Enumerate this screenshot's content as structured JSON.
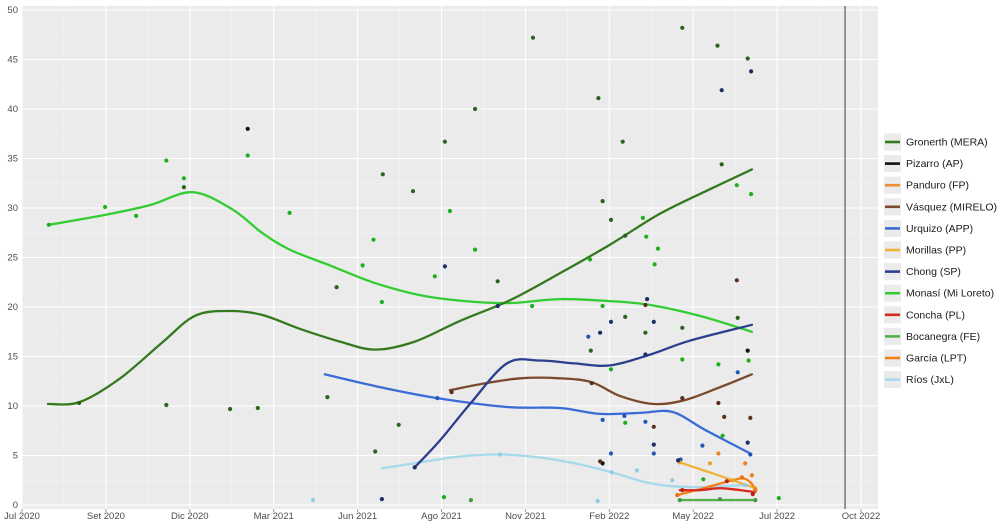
{
  "chart_data": {
    "type": "scatter-line",
    "title": "",
    "xlabel": "",
    "ylabel": "",
    "y_axis": {
      "min": 0,
      "max": 50,
      "step": 5,
      "tick_labels": [
        "0",
        "5",
        "10",
        "15",
        "20",
        "25",
        "30",
        "35",
        "40",
        "45",
        "50"
      ]
    },
    "x_axis": {
      "tick_labels": [
        "Jul 2020",
        "Set 2020",
        "Dic 2020",
        "Mar 2021",
        "Jun 2021",
        "Ago 2021",
        "Nov 2021",
        "Feb 2022",
        "May 2022",
        "Jul 2022",
        "Oct 2022"
      ],
      "note": "ticks evenly spaced; x values below are in tick-index units (0 = Jul 2020, 10 = Oct 2022)"
    },
    "grid": true,
    "panel_background": "#ebebeb",
    "gridline_color": "#ffffff",
    "election_marker_x": 9.81,
    "election_marker_color": "#5a5a5a",
    "legend_position": "right",
    "series": [
      {
        "id": "gronerth",
        "label": "Gronerth (MERA)",
        "color": "#35791f",
        "dot_color": "#2a641a",
        "line": [
          [
            0.31,
            10.2
          ],
          [
            0.69,
            10.4
          ],
          [
            1.17,
            12.8
          ],
          [
            1.67,
            16.4
          ],
          [
            2.06,
            19.1
          ],
          [
            2.47,
            19.6
          ],
          [
            2.86,
            19.2
          ],
          [
            3.31,
            17.8
          ],
          [
            3.79,
            16.5
          ],
          [
            4.21,
            15.7
          ],
          [
            4.68,
            16.5
          ],
          [
            5.22,
            18.6
          ],
          [
            5.82,
            20.7
          ],
          [
            6.41,
            23.4
          ],
          [
            7.01,
            26.3
          ],
          [
            7.6,
            29.4
          ],
          [
            8.2,
            31.9
          ],
          [
            8.7,
            33.9
          ]
        ],
        "points": [
          [
            0.68,
            10.3
          ],
          [
            1.72,
            10.1
          ],
          [
            2.48,
            9.7
          ],
          [
            2.81,
            9.8
          ],
          [
            3.64,
            10.9
          ],
          [
            4.21,
            5.4
          ],
          [
            4.49,
            8.1
          ],
          [
            1.93,
            32.1
          ],
          [
            3.75,
            22.0
          ],
          [
            4.3,
            33.4
          ],
          [
            4.66,
            31.7
          ],
          [
            5.04,
            36.7
          ],
          [
            5.4,
            40.0
          ],
          [
            5.67,
            22.6
          ],
          [
            6.09,
            47.2
          ],
          [
            6.87,
            41.1
          ],
          [
            6.92,
            30.7
          ],
          [
            7.02,
            28.8
          ],
          [
            7.16,
            36.7
          ],
          [
            7.19,
            27.2
          ],
          [
            7.19,
            19.0
          ],
          [
            6.78,
            15.6
          ],
          [
            7.43,
            17.4
          ],
          [
            7.87,
            48.2
          ],
          [
            7.87,
            17.9
          ],
          [
            8.29,
            46.4
          ],
          [
            8.34,
            34.4
          ],
          [
            8.53,
            18.9
          ],
          [
            8.65,
            45.1
          ]
        ]
      },
      {
        "id": "pizarro",
        "label": "Pizarro (AP)",
        "color": "#111111",
        "dot_color": "#111111",
        "line": [],
        "points": [
          [
            2.69,
            38.0
          ],
          [
            6.92,
            4.2
          ],
          [
            8.65,
            15.6
          ]
        ]
      },
      {
        "id": "panduro",
        "label": "Panduro (FP)",
        "color": "#ef8e2e",
        "dot_color": "#e8821e",
        "line": [],
        "points": [
          [
            8.3,
            5.2
          ],
          [
            8.62,
            4.2
          ],
          [
            8.7,
            3.0
          ]
        ]
      },
      {
        "id": "vasquez",
        "label": "Vásquez (MIRELO)",
        "color": "#7b4a2d",
        "dot_color": "#5c2f1b",
        "line": [
          [
            5.1,
            11.6
          ],
          [
            5.46,
            12.2
          ],
          [
            5.94,
            12.8
          ],
          [
            6.41,
            12.8
          ],
          [
            6.79,
            12.4
          ],
          [
            7.13,
            11.0
          ],
          [
            7.53,
            10.2
          ],
          [
            7.9,
            10.6
          ],
          [
            8.32,
            11.9
          ],
          [
            8.7,
            13.2
          ]
        ],
        "points": [
          [
            5.12,
            11.4
          ],
          [
            6.79,
            12.3
          ],
          [
            6.89,
            4.4
          ],
          [
            7.43,
            20.2
          ],
          [
            7.53,
            7.9
          ],
          [
            7.87,
            10.8
          ],
          [
            8.3,
            10.3
          ],
          [
            8.37,
            8.9
          ],
          [
            8.52,
            22.7
          ],
          [
            8.68,
            8.8
          ]
        ]
      },
      {
        "id": "urquizo",
        "label": "Urquizo (APP)",
        "color": "#3a6bd6",
        "dot_color": "#2456b8",
        "line": [
          [
            3.61,
            13.2
          ],
          [
            4.27,
            11.9
          ],
          [
            4.95,
            10.8
          ],
          [
            5.78,
            9.9
          ],
          [
            6.41,
            9.8
          ],
          [
            6.89,
            9.2
          ],
          [
            7.37,
            9.3
          ],
          [
            7.75,
            9.4
          ],
          [
            8.14,
            7.6
          ],
          [
            8.68,
            5.2
          ]
        ],
        "points": [
          [
            4.95,
            10.8
          ],
          [
            6.75,
            17.0
          ],
          [
            6.92,
            8.6
          ],
          [
            7.02,
            5.2
          ],
          [
            7.18,
            9.0
          ],
          [
            7.43,
            8.4
          ],
          [
            7.53,
            5.2
          ],
          [
            7.85,
            4.6
          ],
          [
            8.11,
            6.0
          ],
          [
            8.53,
            13.4
          ],
          [
            8.68,
            5.1
          ]
        ]
      },
      {
        "id": "morillas",
        "label": "Morillas (PP)",
        "color": "#eeb33c",
        "dot_color": "#e2a52e",
        "line": [
          [
            7.84,
            4.3
          ],
          [
            8.3,
            3.0
          ],
          [
            8.74,
            1.7
          ]
        ],
        "points": [
          [
            7.84,
            4.3
          ],
          [
            8.2,
            4.2
          ],
          [
            8.48,
            2.5
          ],
          [
            8.74,
            1.7
          ]
        ]
      },
      {
        "id": "chong",
        "label": "Chong (SP)",
        "color": "#2b3f8c",
        "dot_color": "#1f2d66",
        "line": [
          [
            4.68,
            3.8
          ],
          [
            4.98,
            6.5
          ],
          [
            5.34,
            10.2
          ],
          [
            5.78,
            14.3
          ],
          [
            6.17,
            14.6
          ],
          [
            6.59,
            14.3
          ],
          [
            7.01,
            14.1
          ],
          [
            7.49,
            15.2
          ],
          [
            7.96,
            16.6
          ],
          [
            8.7,
            18.2
          ]
        ],
        "points": [
          [
            4.29,
            0.6
          ],
          [
            4.68,
            3.8
          ],
          [
            5.04,
            24.1
          ],
          [
            5.67,
            20.1
          ],
          [
            6.89,
            17.4
          ],
          [
            7.02,
            18.5
          ],
          [
            7.43,
            15.2
          ],
          [
            7.45,
            20.8
          ],
          [
            7.53,
            18.5
          ],
          [
            7.53,
            6.1
          ],
          [
            7.82,
            4.5
          ],
          [
            8.34,
            41.9
          ],
          [
            8.65,
            6.3
          ],
          [
            8.69,
            43.8
          ]
        ]
      },
      {
        "id": "monasi",
        "label": "Monasí (Mi Loreto)",
        "color": "#33cc33",
        "dot_color": "#1fae1f",
        "line": [
          [
            0.32,
            28.3
          ],
          [
            0.99,
            29.3
          ],
          [
            1.53,
            30.3
          ],
          [
            2.03,
            31.6
          ],
          [
            2.5,
            29.9
          ],
          [
            2.86,
            27.5
          ],
          [
            3.19,
            25.8
          ],
          [
            3.67,
            24.2
          ],
          [
            4.18,
            22.5
          ],
          [
            4.74,
            21.2
          ],
          [
            5.28,
            20.6
          ],
          [
            5.82,
            20.4
          ],
          [
            6.41,
            20.8
          ],
          [
            7.01,
            20.6
          ],
          [
            7.49,
            20.2
          ],
          [
            8.08,
            19.1
          ],
          [
            8.7,
            17.5
          ]
        ],
        "points": [
          [
            0.32,
            28.3
          ],
          [
            0.99,
            30.1
          ],
          [
            1.36,
            29.2
          ],
          [
            1.72,
            34.8
          ],
          [
            1.93,
            33.0
          ],
          [
            2.69,
            35.3
          ],
          [
            3.19,
            29.5
          ],
          [
            4.06,
            24.2
          ],
          [
            4.19,
            26.8
          ],
          [
            4.29,
            20.5
          ],
          [
            4.92,
            23.1
          ],
          [
            5.1,
            29.7
          ],
          [
            5.4,
            25.8
          ],
          [
            6.08,
            20.1
          ],
          [
            6.77,
            24.8
          ],
          [
            6.92,
            20.1
          ],
          [
            7.02,
            13.7
          ],
          [
            7.4,
            29.0
          ],
          [
            7.44,
            27.1
          ],
          [
            7.54,
            24.3
          ],
          [
            7.58,
            25.9
          ],
          [
            7.87,
            14.7
          ],
          [
            8.3,
            14.2
          ],
          [
            8.35,
            7.0
          ],
          [
            8.52,
            32.3
          ],
          [
            8.66,
            14.6
          ],
          [
            8.69,
            31.4
          ],
          [
            7.19,
            8.3
          ],
          [
            5.03,
            0.8
          ],
          [
            8.12,
            2.6
          ],
          [
            9.02,
            0.7
          ]
        ]
      },
      {
        "id": "concha",
        "label": "Concha (PL)",
        "color": "#d62a1e",
        "dot_color": "#c01f15",
        "line": [
          [
            7.84,
            1.5
          ],
          [
            8.08,
            1.5
          ],
          [
            8.32,
            1.7
          ],
          [
            8.56,
            1.5
          ],
          [
            8.74,
            1.3
          ]
        ],
        "points": [
          [
            7.87,
            1.5
          ],
          [
            8.4,
            2.4
          ],
          [
            8.71,
            1.1
          ]
        ]
      },
      {
        "id": "bocanegra",
        "label": "Bocanegra (FE)",
        "color": "#55b04b",
        "dot_color": "#459a3c",
        "line": [
          [
            7.84,
            0.5
          ],
          [
            8.74,
            0.5
          ]
        ],
        "points": [
          [
            5.35,
            0.5
          ],
          [
            7.84,
            0.5
          ],
          [
            8.32,
            0.6
          ],
          [
            8.74,
            0.5
          ]
        ]
      },
      {
        "id": "garcia",
        "label": "García (LPT)",
        "color": "#f2801a",
        "dot_color": "#e57312",
        "line": [
          [
            7.81,
            1.0
          ],
          [
            8.08,
            1.6
          ],
          [
            8.38,
            2.3
          ],
          [
            8.58,
            2.7
          ],
          [
            8.68,
            2.3
          ],
          [
            8.74,
            1.6
          ]
        ],
        "points": [
          [
            7.81,
            1.0
          ],
          [
            8.58,
            2.8
          ],
          [
            8.74,
            1.5
          ]
        ]
      },
      {
        "id": "rios",
        "label": "Ríos (JxL)",
        "color": "#a6d9ec",
        "dot_color": "#8ecbe4",
        "line": [
          [
            4.29,
            3.7
          ],
          [
            4.74,
            4.3
          ],
          [
            5.22,
            4.9
          ],
          [
            5.7,
            5.1
          ],
          [
            6.17,
            4.8
          ],
          [
            6.59,
            4.2
          ],
          [
            7.03,
            3.3
          ],
          [
            7.43,
            2.3
          ],
          [
            7.75,
            1.9
          ],
          [
            8.08,
            1.8
          ],
          [
            8.34,
            1.9
          ],
          [
            8.62,
            2.0
          ]
        ],
        "points": [
          [
            3.47,
            0.5
          ],
          [
            5.7,
            5.1
          ],
          [
            6.86,
            0.4
          ],
          [
            7.03,
            3.3
          ],
          [
            7.33,
            3.5
          ],
          [
            7.75,
            2.5
          ],
          [
            8.62,
            2.0
          ]
        ]
      }
    ],
    "legend_order": [
      "gronerth",
      "pizarro",
      "panduro",
      "vasquez",
      "urquizo",
      "morillas",
      "chong",
      "monasi",
      "concha",
      "bocanegra",
      "garcia",
      "rios"
    ]
  },
  "labels": {
    "axis_text_color": "#4d4d4d",
    "legend_text_color": "#1a1a1a"
  }
}
